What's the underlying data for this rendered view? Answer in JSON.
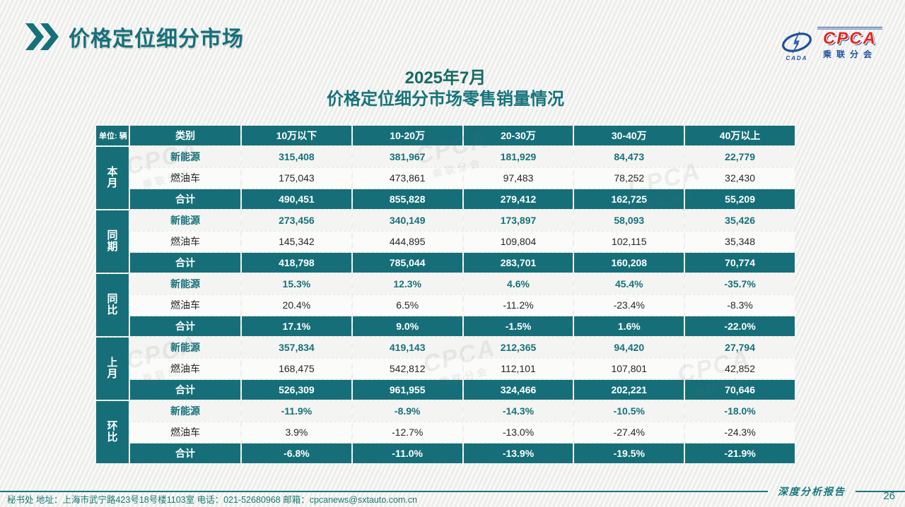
{
  "page": {
    "title": "价格定位细分市场",
    "page_number": "26"
  },
  "logo": {
    "abbr": "CPCA",
    "mark": "CADA",
    "name_cn": "乘联分会"
  },
  "subtitle": {
    "line1": "2025年7月",
    "line2": "价格定位细分市场零售销量情况"
  },
  "watermark": {
    "cpca": "CPCA",
    "sub": "乘联分会"
  },
  "footer": {
    "left": "秘书处  地址：上海市武宁路423号18号楼1103室 电话：021-52680968  邮箱：cpcanews@sxtauto.com.cn",
    "report_label": "深度分析报告"
  },
  "colors": {
    "teal": "#166f78",
    "nev_text": "#17717a",
    "logo_blue": "#1d4f9e",
    "logo_red": "#e8251d"
  },
  "chart_data": {
    "type": "table",
    "title": "2025年7月价格定位细分市场零售销量情况",
    "unit_label": "单位: 辆",
    "columns": [
      "类别",
      "10万以下",
      "10-20万",
      "20-30万",
      "30-40万",
      "40万以上"
    ],
    "sections": [
      {
        "group": "本月",
        "rows": [
          {
            "label": "新能源",
            "style": "nev",
            "values": [
              "315,408",
              "381,967",
              "181,929",
              "84,473",
              "22,779"
            ]
          },
          {
            "label": "燃油车",
            "style": "fuel",
            "values": [
              "175,043",
              "473,861",
              "97,483",
              "78,252",
              "32,430"
            ]
          },
          {
            "label": "合计",
            "style": "total",
            "values": [
              "490,451",
              "855,828",
              "279,412",
              "162,725",
              "55,209"
            ]
          }
        ]
      },
      {
        "group": "同期",
        "rows": [
          {
            "label": "新能源",
            "style": "nev",
            "values": [
              "273,456",
              "340,149",
              "173,897",
              "58,093",
              "35,426"
            ]
          },
          {
            "label": "燃油车",
            "style": "fuel",
            "values": [
              "145,342",
              "444,895",
              "109,804",
              "102,115",
              "35,348"
            ]
          },
          {
            "label": "合计",
            "style": "total",
            "values": [
              "418,798",
              "785,044",
              "283,701",
              "160,208",
              "70,774"
            ]
          }
        ]
      },
      {
        "group": "同比",
        "rows": [
          {
            "label": "新能源",
            "style": "nev",
            "values": [
              "15.3%",
              "12.3%",
              "4.6%",
              "45.4%",
              "-35.7%"
            ]
          },
          {
            "label": "燃油车",
            "style": "fuel",
            "values": [
              "20.4%",
              "6.5%",
              "-11.2%",
              "-23.4%",
              "-8.3%"
            ]
          },
          {
            "label": "合计",
            "style": "total",
            "values": [
              "17.1%",
              "9.0%",
              "-1.5%",
              "1.6%",
              "-22.0%"
            ]
          }
        ]
      },
      {
        "group": "上月",
        "rows": [
          {
            "label": "新能源",
            "style": "nev",
            "values": [
              "357,834",
              "419,143",
              "212,365",
              "94,420",
              "27,794"
            ]
          },
          {
            "label": "燃油车",
            "style": "fuel",
            "values": [
              "168,475",
              "542,812",
              "112,101",
              "107,801",
              "42,852"
            ]
          },
          {
            "label": "合计",
            "style": "total",
            "values": [
              "526,309",
              "961,955",
              "324,466",
              "202,221",
              "70,646"
            ]
          }
        ]
      },
      {
        "group": "环比",
        "rows": [
          {
            "label": "新能源",
            "style": "nev",
            "values": [
              "-11.9%",
              "-8.9%",
              "-14.3%",
              "-10.5%",
              "-18.0%"
            ]
          },
          {
            "label": "燃油车",
            "style": "fuel",
            "values": [
              "3.9%",
              "-12.7%",
              "-13.0%",
              "-27.4%",
              "-24.3%"
            ]
          },
          {
            "label": "合计",
            "style": "total",
            "values": [
              "-6.8%",
              "-11.0%",
              "-13.9%",
              "-19.5%",
              "-21.9%"
            ]
          }
        ]
      }
    ]
  }
}
